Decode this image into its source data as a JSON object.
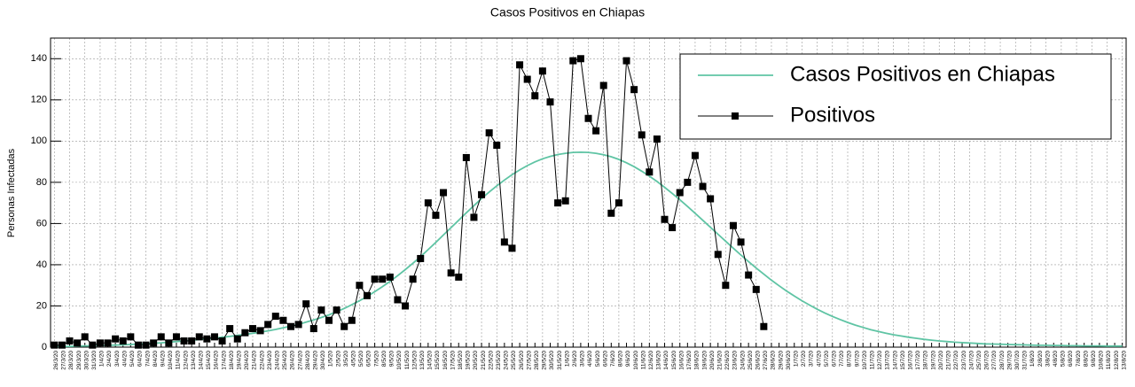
{
  "chart_data": {
    "type": "line",
    "title": "Casos Positivos en Chiapas",
    "y_label": "Personas Infectadas",
    "categories": [
      "26/3/20",
      "27/3/20",
      "28/3/20",
      "29/3/20",
      "30/3/20",
      "31/3/20",
      "1/4/20",
      "2/4/20",
      "3/4/20",
      "4/4/20",
      "5/4/20",
      "6/4/20",
      "7/4/20",
      "8/4/20",
      "9/4/20",
      "10/4/20",
      "11/4/20",
      "12/4/20",
      "13/4/20",
      "14/4/20",
      "15/4/20",
      "16/4/20",
      "17/4/20",
      "18/4/20",
      "19/4/20",
      "20/4/20",
      "21/4/20",
      "22/4/20",
      "23/4/20",
      "24/4/20",
      "25/4/20",
      "26/4/20",
      "27/4/20",
      "28/4/20",
      "29/4/20",
      "30/4/20",
      "1/5/20",
      "2/5/20",
      "3/5/20",
      "4/5/20",
      "5/5/20",
      "6/5/20",
      "7/5/20",
      "8/5/20",
      "9/5/20",
      "10/5/20",
      "11/5/20",
      "12/5/20",
      "13/5/20",
      "14/5/20",
      "15/5/20",
      "16/5/20",
      "17/5/20",
      "18/5/20",
      "19/5/20",
      "20/5/20",
      "21/5/20",
      "22/5/20",
      "23/5/20",
      "24/5/20",
      "25/5/20",
      "26/5/20",
      "27/5/20",
      "28/5/20",
      "29/5/20",
      "30/5/20",
      "31/5/20",
      "1/6/20",
      "2/6/20",
      "3/6/20",
      "4/6/20",
      "5/6/20",
      "6/6/20",
      "7/6/20",
      "8/6/20",
      "9/6/20",
      "10/6/20",
      "11/6/20",
      "12/6/20",
      "13/6/20",
      "14/6/20",
      "15/6/20",
      "16/6/20",
      "17/6/20",
      "18/6/20",
      "19/6/20",
      "20/6/20",
      "21/6/20",
      "22/6/20",
      "23/6/20",
      "24/6/20",
      "25/6/20",
      "26/6/20",
      "27/6/20",
      "28/6/20",
      "29/6/20",
      "30/6/20",
      "1/7/20",
      "2/7/20",
      "3/7/20",
      "4/7/20",
      "5/7/20",
      "6/7/20",
      "7/7/20",
      "8/7/20",
      "9/7/20",
      "10/7/20",
      "11/7/20",
      "12/7/20",
      "13/7/20",
      "14/7/20",
      "15/7/20",
      "16/7/20",
      "17/7/20",
      "18/7/20",
      "19/7/20",
      "20/7/20",
      "21/7/20",
      "22/7/20",
      "23/7/20",
      "24/7/20",
      "25/7/20",
      "26/7/20",
      "27/7/20",
      "28/7/20",
      "29/7/20",
      "30/7/20",
      "31/7/20",
      "1/8/20",
      "2/8/20",
      "3/8/20",
      "4/8/20",
      "5/8/20",
      "6/8/20",
      "7/8/20",
      "8/8/20",
      "9/8/20",
      "10/8/20",
      "11/8/20",
      "12/8/20",
      "13/8/20"
    ],
    "series": [
      {
        "name": "Casos Positivos en Chiapas",
        "color": "#5fc4a4",
        "marker": "none",
        "values": [
          0.3,
          0.4,
          0.4,
          0.5,
          0.6,
          0.7,
          0.8,
          0.9,
          1.0,
          1.1,
          1.3,
          1.5,
          1.7,
          1.9,
          2.1,
          2.4,
          2.7,
          3.0,
          3.3,
          3.7,
          4.0,
          4.4,
          4.8,
          5.2,
          5.7,
          6.2,
          6.7,
          7.3,
          7.9,
          8.6,
          9.4,
          10.2,
          11.1,
          12.1,
          13.2,
          14.4,
          15.7,
          17.2,
          18.8,
          20.6,
          22.5,
          24.6,
          26.9,
          29.3,
          31.9,
          34.7,
          37.6,
          40.7,
          43.9,
          47.3,
          50.8,
          54.4,
          58.0,
          61.6,
          65.2,
          68.7,
          72.1,
          75.3,
          78.3,
          81.1,
          83.7,
          86.0,
          88.1,
          89.9,
          91.4,
          92.6,
          93.5,
          94.1,
          94.5,
          94.6,
          94.5,
          94.1,
          93.4,
          92.4,
          91.1,
          89.5,
          87.6,
          85.4,
          83.0,
          80.4,
          77.6,
          74.6,
          71.5,
          68.3,
          65.0,
          61.6,
          58.2,
          54.8,
          51.4,
          48.0,
          44.7,
          41.5,
          38.4,
          35.4,
          32.5,
          29.8,
          27.2,
          24.8,
          22.5,
          20.4,
          18.4,
          16.6,
          14.9,
          13.4,
          12.0,
          10.7,
          9.6,
          8.5,
          7.6,
          6.8,
          6.0,
          5.4,
          4.8,
          4.3,
          3.8,
          3.4,
          3.0,
          2.7,
          2.4,
          2.2,
          2.0,
          1.8,
          1.6,
          1.5,
          1.4,
          1.3,
          1.2,
          1.1,
          1.0,
          0.9,
          0.9,
          0.8,
          0.8,
          0.7,
          0.7,
          0.6,
          0.6,
          0.6,
          0.5,
          0.5,
          0.5
        ]
      },
      {
        "name": "Positivos",
        "color": "#000000",
        "marker": "square",
        "values": [
          1,
          1,
          3,
          2,
          5,
          1,
          2,
          2,
          4,
          3,
          5,
          1,
          1,
          2,
          5,
          2,
          5,
          3,
          3,
          5,
          4,
          5,
          3,
          9,
          4,
          7,
          9,
          8,
          11,
          15,
          13,
          10,
          11,
          21,
          9,
          18,
          13,
          18,
          10,
          13,
          30,
          25,
          33,
          33,
          34,
          23,
          20,
          33,
          43,
          70,
          64,
          75,
          36,
          34,
          92,
          63,
          74,
          104,
          98,
          51,
          48,
          137,
          130,
          122,
          134,
          119,
          70,
          71,
          139,
          140,
          111,
          105,
          127,
          65,
          70,
          139,
          125,
          103,
          85,
          101,
          62,
          58,
          75,
          80,
          93,
          78,
          72,
          45,
          30,
          59,
          51,
          35,
          28,
          10,
          null,
          null,
          null,
          null,
          null,
          null,
          null,
          null,
          null,
          null,
          null,
          null,
          null,
          null,
          null,
          null,
          null,
          null,
          null,
          null,
          null,
          null,
          null,
          null,
          null,
          null,
          null,
          null,
          null,
          null,
          null,
          null,
          null,
          null,
          null,
          null,
          null,
          null,
          null,
          null,
          null,
          null,
          null,
          null,
          null,
          null,
          null
        ]
      }
    ],
    "ylim": [
      0,
      150
    ],
    "yticks": [
      0,
      20,
      40,
      60,
      80,
      100,
      120,
      140
    ],
    "grid": true,
    "legend": "top-right"
  }
}
